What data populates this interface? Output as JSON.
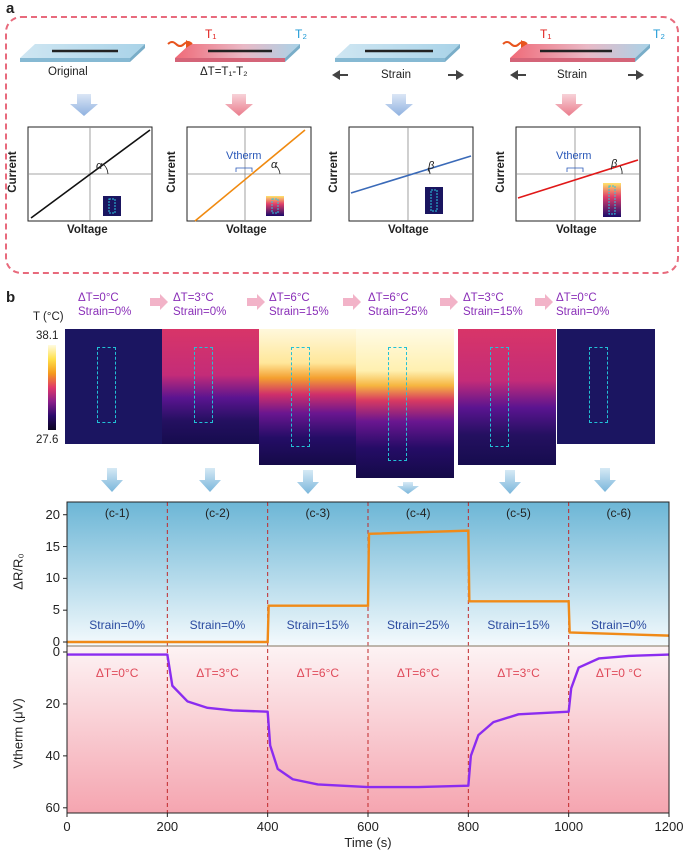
{
  "panel_a": {
    "letter": "a",
    "scenarios": [
      {
        "label": "Original",
        "t1": "",
        "t2": "",
        "plot_y": "Current",
        "plot_x": "Voltage",
        "angle": "α",
        "vtherm": ""
      },
      {
        "label": "ΔT=T₁-T₂",
        "t1": "T₁",
        "t2": "T₂",
        "plot_y": "Current",
        "plot_x": "Voltage",
        "angle": "α",
        "vtherm": "Vtherm"
      },
      {
        "label": "Strain",
        "t1": "",
        "t2": "",
        "plot_y": "Current",
        "plot_x": "Voltage",
        "angle": "β",
        "vtherm": ""
      },
      {
        "label": "Strain",
        "t1": "T₁",
        "t2": "T₂",
        "plot_y": "Current",
        "plot_x": "Voltage",
        "angle": "β",
        "vtherm": "Vtherm"
      }
    ]
  },
  "panel_b": {
    "letter": "b",
    "colorbar": {
      "title": "T (°C)",
      "max": "38.1",
      "min": "27.6"
    },
    "states": [
      {
        "dt": "ΔT=0°C",
        "strain": "Strain=0%"
      },
      {
        "dt": "ΔT=3°C",
        "strain": "Strain=0%"
      },
      {
        "dt": "ΔT=6°C",
        "strain": "Strain=15%"
      },
      {
        "dt": "ΔT=6°C",
        "strain": "Strain=25%"
      },
      {
        "dt": "ΔT=3°C",
        "strain": "Strain=15%"
      },
      {
        "dt": "ΔT=0°C",
        "strain": "Strain=0%"
      }
    ]
  },
  "chart_data": {
    "type": "line",
    "xlabel": "Time (s)",
    "xlim": [
      0,
      1200
    ],
    "xticks": [
      "0",
      "200",
      "400",
      "600",
      "800",
      "1000",
      "1200"
    ],
    "segment_labels": [
      "(c-1)",
      "(c-2)",
      "(c-3)",
      "(c-4)",
      "(c-5)",
      "(c-6)"
    ],
    "strain_labels": [
      "Strain=0%",
      "Strain=0%",
      "Strain=15%",
      "Strain=25%",
      "Strain=15%",
      "Strain=0%"
    ],
    "dt_labels": [
      "ΔT=0°C",
      "ΔT=3°C",
      "ΔT=6°C",
      "ΔT=6°C",
      "ΔT=3°C",
      "ΔT=0 °C"
    ],
    "top": {
      "ylabel": "ΔR/R₀",
      "ylim": [
        0,
        22
      ],
      "yticks": [
        "0",
        "5",
        "10",
        "15",
        "20"
      ],
      "series_name": "ΔR/R0",
      "x": [
        0,
        200,
        400,
        402,
        600,
        602,
        800,
        802,
        1000,
        1002,
        1200
      ],
      "y": [
        0,
        0,
        0,
        5.7,
        5.7,
        17.0,
        17.5,
        6.4,
        6.4,
        1.5,
        1.0
      ]
    },
    "bottom": {
      "ylabel": "Vtherm (μV)",
      "ylim": [
        0,
        62
      ],
      "yticks": [
        "0",
        "20",
        "40",
        "60"
      ],
      "series_name": "Vtherm",
      "x": [
        0,
        200,
        210,
        240,
        280,
        330,
        400,
        405,
        420,
        450,
        500,
        600,
        700,
        800,
        805,
        820,
        850,
        900,
        1000,
        1005,
        1020,
        1060,
        1120,
        1200
      ],
      "y": [
        1,
        1,
        13,
        19,
        21.5,
        22.5,
        23,
        36,
        45,
        49,
        51,
        52,
        52,
        51.5,
        40,
        32,
        27,
        24,
        23,
        14,
        6,
        2.5,
        1.5,
        1
      ]
    }
  }
}
